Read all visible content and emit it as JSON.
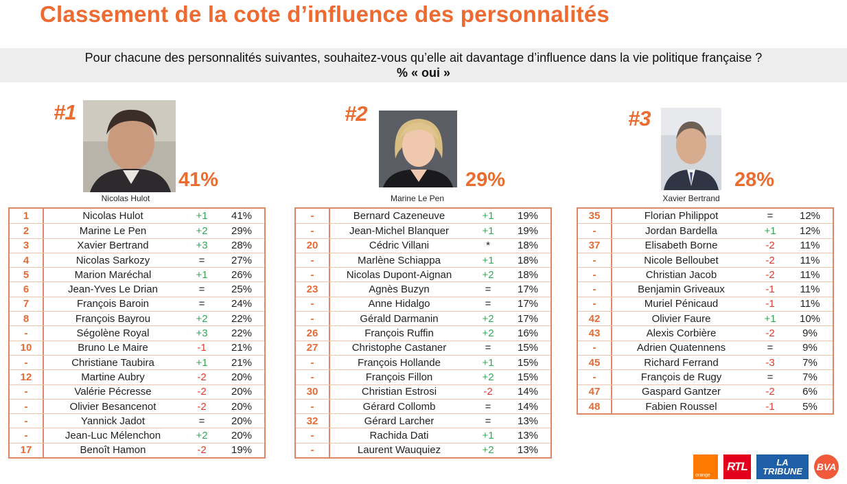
{
  "header": {
    "title": "Classement de la cote d’influence des personnalités",
    "question": "Pour chacune des personnalités suivantes, souhaitez-vous qu’elle ait davantage d’influence dans la vie politique française ?",
    "subtitle": "% « oui »"
  },
  "podium": [
    {
      "rank": "#1",
      "name": "Nicolas Hulot",
      "percent": "41%"
    },
    {
      "rank": "#2",
      "name": "Marine Le Pen",
      "percent": "29%"
    },
    {
      "rank": "#3",
      "name": "Xavier Bertrand",
      "percent": "28%"
    }
  ],
  "tables": [
    [
      {
        "rank": "1",
        "name": "Nicolas Hulot",
        "evo": "+1",
        "pct": "41%"
      },
      {
        "rank": "2",
        "name": "Marine Le Pen",
        "evo": "+2",
        "pct": "29%"
      },
      {
        "rank": "3",
        "name": "Xavier Bertrand",
        "evo": "+3",
        "pct": "28%"
      },
      {
        "rank": "4",
        "name": "Nicolas Sarkozy",
        "evo": "=",
        "pct": "27%"
      },
      {
        "rank": "5",
        "name": "Marion Maréchal",
        "evo": "+1",
        "pct": "26%"
      },
      {
        "rank": "6",
        "name": "Jean-Yves Le Drian",
        "evo": "=",
        "pct": "25%"
      },
      {
        "rank": "7",
        "name": "François Baroin",
        "evo": "=",
        "pct": "24%"
      },
      {
        "rank": "8",
        "name": "François Bayrou",
        "evo": "+2",
        "pct": "22%"
      },
      {
        "rank": "-",
        "name": "Ségolène Royal",
        "evo": "+3",
        "pct": "22%"
      },
      {
        "rank": "10",
        "name": "Bruno Le Maire",
        "evo": "-1",
        "pct": "21%"
      },
      {
        "rank": "-",
        "name": "Christiane Taubira",
        "evo": "+1",
        "pct": "21%"
      },
      {
        "rank": "12",
        "name": "Martine Aubry",
        "evo": "-2",
        "pct": "20%"
      },
      {
        "rank": "-",
        "name": "Valérie Pécresse",
        "evo": "-2",
        "pct": "20%"
      },
      {
        "rank": "-",
        "name": "Olivier Besancenot",
        "evo": "-2",
        "pct": "20%"
      },
      {
        "rank": "-",
        "name": "Yannick Jadot",
        "evo": "=",
        "pct": "20%"
      },
      {
        "rank": "-",
        "name": "Jean-Luc Mélenchon",
        "evo": "+2",
        "pct": "20%"
      },
      {
        "rank": "17",
        "name": "Benoît Hamon",
        "evo": "-2",
        "pct": "19%"
      }
    ],
    [
      {
        "rank": "-",
        "name": "Bernard Cazeneuve",
        "evo": "+1",
        "pct": "19%"
      },
      {
        "rank": "-",
        "name": "Jean-Michel Blanquer",
        "evo": "+1",
        "pct": "19%"
      },
      {
        "rank": "20",
        "name": "Cédric Villani",
        "evo": "*",
        "pct": "18%"
      },
      {
        "rank": "-",
        "name": "Marlène Schiappa",
        "evo": "+1",
        "pct": "18%"
      },
      {
        "rank": "-",
        "name": "Nicolas Dupont-Aignan",
        "evo": "+2",
        "pct": "18%"
      },
      {
        "rank": "23",
        "name": "Agnès Buzyn",
        "evo": "=",
        "pct": "17%"
      },
      {
        "rank": "-",
        "name": "Anne Hidalgo",
        "evo": "=",
        "pct": "17%"
      },
      {
        "rank": "-",
        "name": "Gérald Darmanin",
        "evo": "+2",
        "pct": "17%"
      },
      {
        "rank": "26",
        "name": "François Ruffin",
        "evo": "+2",
        "pct": "16%"
      },
      {
        "rank": "27",
        "name": "Christophe Castaner",
        "evo": "=",
        "pct": "15%"
      },
      {
        "rank": "-",
        "name": "François Hollande",
        "evo": "+1",
        "pct": "15%"
      },
      {
        "rank": "-",
        "name": "François Fillon",
        "evo": "+2",
        "pct": "15%"
      },
      {
        "rank": "30",
        "name": "Christian Estrosi",
        "evo": "-2",
        "pct": "14%"
      },
      {
        "rank": "-",
        "name": "Gérard Collomb",
        "evo": "=",
        "pct": "14%"
      },
      {
        "rank": "32",
        "name": "Gérard Larcher",
        "evo": "=",
        "pct": "13%"
      },
      {
        "rank": "-",
        "name": "Rachida Dati",
        "evo": "+1",
        "pct": "13%"
      },
      {
        "rank": "-",
        "name": "Laurent Wauquiez",
        "evo": "+2",
        "pct": "13%"
      }
    ],
    [
      {
        "rank": "35",
        "name": "Florian Philippot",
        "evo": "=",
        "pct": "12%"
      },
      {
        "rank": "-",
        "name": "Jordan Bardella",
        "evo": "+1",
        "pct": "12%"
      },
      {
        "rank": "37",
        "name": "Elisabeth Borne",
        "evo": "-2",
        "pct": "11%"
      },
      {
        "rank": "-",
        "name": "Nicole Belloubet",
        "evo": "-2",
        "pct": "11%"
      },
      {
        "rank": "-",
        "name": "Christian Jacob",
        "evo": "-2",
        "pct": "11%"
      },
      {
        "rank": "-",
        "name": "Benjamin Griveaux",
        "evo": "-1",
        "pct": "11%"
      },
      {
        "rank": "-",
        "name": "Muriel Pénicaud",
        "evo": "-1",
        "pct": "11%"
      },
      {
        "rank": "42",
        "name": "Olivier Faure",
        "evo": "+1",
        "pct": "10%"
      },
      {
        "rank": "43",
        "name": "Alexis Corbière",
        "evo": "-2",
        "pct": "9%"
      },
      {
        "rank": "-",
        "name": "Adrien Quatennens",
        "evo": "=",
        "pct": "9%"
      },
      {
        "rank": "45",
        "name": "Richard Ferrand",
        "evo": "-3",
        "pct": "7%"
      },
      {
        "rank": "-",
        "name": "François de Rugy",
        "evo": "=",
        "pct": "7%"
      },
      {
        "rank": "47",
        "name": "Gaspard Gantzer",
        "evo": "-2",
        "pct": "6%"
      },
      {
        "rank": "48",
        "name": "Fabien Roussel",
        "evo": "-1",
        "pct": "5%"
      }
    ]
  ],
  "logos": {
    "orange": "orange",
    "rtl": "RTL",
    "tribune_line1": "LA",
    "tribune_line2": "TRIBUNE",
    "bva": "BVA"
  },
  "colors": {
    "accent": "#ec6b2f",
    "up": "#34a853",
    "down": "#e23a2e"
  }
}
